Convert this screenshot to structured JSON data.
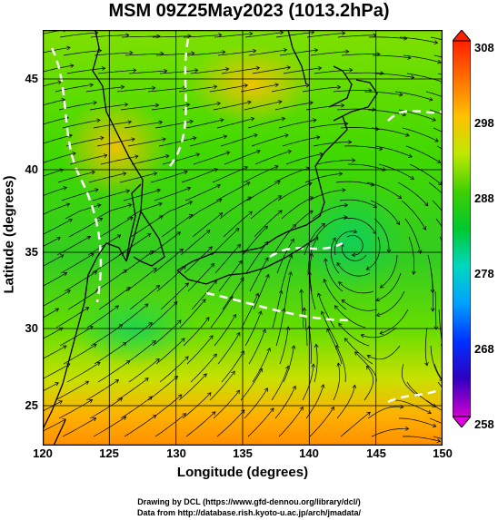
{
  "title": "MSM 09Z25May2023 (1013.2hPa)",
  "xlabel": "Longitude (degrees)",
  "ylabel": "Latitude  (degrees)",
  "x_ticks": [
    "120",
    "125",
    "130",
    "135",
    "140",
    "145",
    "150"
  ],
  "y_ticks": [
    "25",
    "30",
    "35",
    "40",
    "45"
  ],
  "colorbar_ticks": [
    "258",
    "268",
    "278",
    "288",
    "298",
    "308"
  ],
  "credit_line1": "Drawing by DCL (https://www.gfd-dennou.org/library/dcl/)",
  "credit_line2": "Data from http://database.rish.kyoto-u.ac.jp/arch/jmadata/",
  "chart_data": {
    "type": "heatmap",
    "title": "MSM 09Z25May2023 (1013.2hPa)",
    "xlabel": "Longitude (degrees)",
    "ylabel": "Latitude  (degrees)",
    "xlim": [
      120,
      150
    ],
    "ylim": [
      22.4,
      47.6
    ],
    "x_ticks": [
      120,
      125,
      130,
      135,
      140,
      145,
      150
    ],
    "y_ticks": [
      25,
      30,
      35,
      40,
      45
    ],
    "colorbar": {
      "min": 258,
      "max": 308,
      "ticks": [
        258,
        268,
        278,
        288,
        298,
        308
      ]
    },
    "grid": true
  },
  "colors": {
    "land_outline": "#000000",
    "streamline": "#000000",
    "contour": "#ffffff",
    "field_low": "#00cc00",
    "field_high": "#ff8000"
  }
}
